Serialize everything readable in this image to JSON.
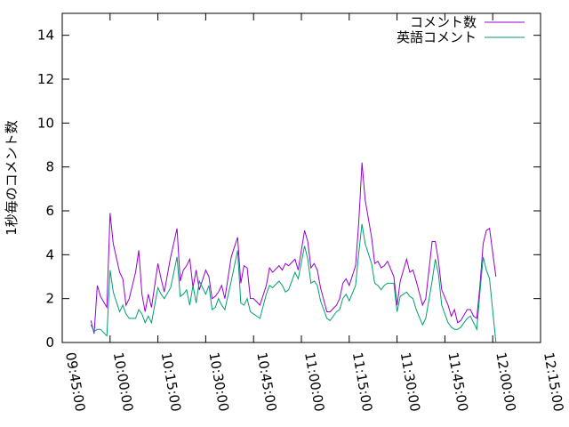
{
  "chart_data": {
    "type": "line",
    "ylabel": "1秒毎のコメント数",
    "x": [
      "09:54:00",
      "09:55:00",
      "09:56:00",
      "09:57:00",
      "09:59:00",
      "10:00:00",
      "10:01:00",
      "10:03:00",
      "10:04:00",
      "10:05:00",
      "10:06:00",
      "10:08:00",
      "10:09:00",
      "10:10:00",
      "10:11:00",
      "10:12:00",
      "10:13:00",
      "10:15:00",
      "10:16:00",
      "10:17:00",
      "10:19:00",
      "10:21:00",
      "10:22:00",
      "10:23:00",
      "10:24:00",
      "10:25:00",
      "10:26:00",
      "10:27:00",
      "10:28:00",
      "10:30:00",
      "10:31:00",
      "10:32:00",
      "10:33:00",
      "10:34:00",
      "10:35:00",
      "10:36:00",
      "10:38:00",
      "10:40:00",
      "10:41:00",
      "10:42:00",
      "10:43:00",
      "10:44:00",
      "10:45:00",
      "10:47:00",
      "10:49:00",
      "10:50:00",
      "10:51:00",
      "10:53:00",
      "10:54:00",
      "10:55:00",
      "10:56:00",
      "10:58:00",
      "10:59:00",
      "11:01:00",
      "11:02:00",
      "11:03:00",
      "11:04:00",
      "11:05:00",
      "11:06:00",
      "11:08:00",
      "11:09:00",
      "11:11:00",
      "11:12:00",
      "11:13:00",
      "11:14:00",
      "11:15:00",
      "11:17:00",
      "11:18:00",
      "11:19:00",
      "11:20:00",
      "11:22:00",
      "11:23:00",
      "11:24:00",
      "11:25:00",
      "11:26:00",
      "11:27:00",
      "11:29:00",
      "11:30:00",
      "11:31:00",
      "11:33:00",
      "11:34:00",
      "11:35:00",
      "11:36:00",
      "11:38:00",
      "11:39:00",
      "11:41:00",
      "11:42:00",
      "11:43:00",
      "11:44:00",
      "11:46:00",
      "11:47:00",
      "11:48:00",
      "11:49:00",
      "11:50:00",
      "11:52:00",
      "11:53:00",
      "11:54:00",
      "11:55:00",
      "11:56:00",
      "11:57:00",
      "11:58:00",
      "11:59:00",
      "12:01:00"
    ],
    "series": [
      {
        "name": "コメント数",
        "color": "#9400d3",
        "values": [
          1.0,
          0.4,
          2.6,
          2.1,
          1.6,
          5.9,
          4.5,
          3.2,
          2.9,
          1.7,
          2.0,
          3.2,
          4.2,
          2.2,
          1.4,
          2.2,
          1.6,
          3.6,
          2.9,
          2.3,
          3.9,
          5.2,
          2.8,
          3.3,
          3.5,
          3.8,
          2.5,
          3.3,
          2.4,
          3.3,
          3.0,
          2.0,
          2.1,
          2.3,
          2.6,
          2.0,
          3.9,
          4.8,
          2.7,
          3.5,
          3.4,
          2.0,
          2.0,
          1.7,
          2.6,
          3.4,
          3.2,
          3.5,
          3.3,
          3.6,
          3.5,
          3.8,
          3.3,
          5.1,
          4.6,
          3.4,
          3.6,
          3.3,
          2.5,
          1.4,
          1.4,
          1.7,
          2.0,
          2.7,
          2.9,
          2.6,
          3.5,
          5.5,
          8.2,
          6.5,
          4.8,
          3.6,
          3.7,
          3.4,
          3.5,
          3.7,
          3.0,
          1.7,
          2.8,
          3.8,
          3.2,
          3.3,
          2.8,
          1.7,
          2.0,
          4.6,
          4.6,
          3.7,
          2.4,
          1.7,
          1.2,
          1.5,
          0.9,
          1.0,
          1.5,
          1.5,
          1.2,
          1.1,
          2.6,
          4.5,
          5.1,
          5.2,
          3.0
        ]
      },
      {
        "name": "英語コメント",
        "color": "#009e73",
        "values": [
          0.8,
          0.5,
          0.6,
          0.6,
          0.3,
          3.3,
          2.3,
          1.4,
          1.7,
          1.3,
          1.1,
          1.1,
          1.5,
          1.3,
          0.9,
          1.2,
          0.9,
          2.5,
          2.2,
          2.0,
          2.5,
          3.9,
          2.1,
          2.2,
          2.4,
          1.7,
          2.6,
          1.8,
          2.8,
          2.2,
          2.6,
          1.5,
          1.6,
          2.0,
          1.7,
          1.5,
          2.8,
          4.2,
          1.8,
          1.7,
          2.0,
          1.4,
          1.3,
          1.1,
          2.2,
          2.6,
          2.5,
          2.8,
          2.6,
          2.3,
          2.4,
          3.2,
          2.9,
          4.4,
          3.8,
          2.7,
          2.8,
          2.6,
          1.9,
          1.1,
          1.0,
          1.4,
          1.5,
          2.0,
          2.2,
          1.9,
          2.6,
          4.1,
          5.4,
          4.5,
          3.6,
          2.7,
          2.6,
          2.4,
          2.6,
          2.7,
          2.7,
          1.4,
          2.1,
          2.3,
          2.1,
          2.0,
          1.5,
          0.8,
          1.1,
          2.8,
          3.8,
          3.1,
          1.7,
          0.9,
          0.7,
          0.6,
          0.6,
          0.7,
          1.1,
          1.2,
          0.9,
          0.6,
          2.3,
          3.9,
          3.3,
          2.9,
          0
        ]
      }
    ],
    "xlim": [
      "09:45:00",
      "12:15:00"
    ],
    "xticks": [
      "09:45:00",
      "10:00:00",
      "10:15:00",
      "10:30:00",
      "10:45:00",
      "11:00:00",
      "11:15:00",
      "11:30:00",
      "11:45:00",
      "12:00:00",
      "12:15:00"
    ],
    "ylim": [
      0,
      15
    ],
    "yticks": [
      0,
      2,
      4,
      6,
      8,
      10,
      12,
      14
    ],
    "legend": "top-right"
  }
}
